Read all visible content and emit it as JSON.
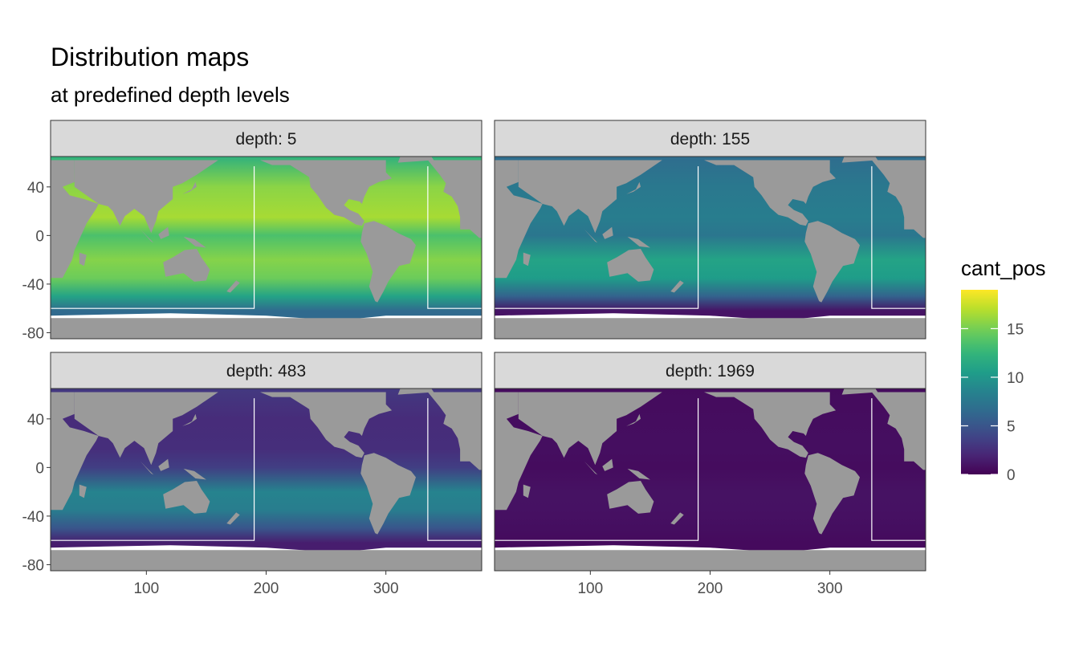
{
  "chart_data": {
    "type": "heatmap",
    "title": "Distribution maps",
    "subtitle": "at predefined depth levels",
    "facet_prefix": "depth: ",
    "x": {
      "lim": [
        20,
        380
      ],
      "ticks": [
        100,
        200,
        300
      ]
    },
    "y": {
      "lim": [
        -85,
        65
      ],
      "ticks": [
        40,
        0,
        -40,
        -80
      ]
    },
    "legend": {
      "title": "cant_pos",
      "position": "right",
      "lim": [
        0,
        19
      ],
      "breaks": [
        0,
        5,
        10,
        15
      ],
      "colormap": "viridis"
    },
    "colors": {
      "land": "#9a9a9a",
      "no_data": "#ffffff",
      "strip_fill": "#d9d9d9",
      "border": "#333333",
      "basin_outline": "#ffffff"
    },
    "basin_outline": {
      "y_min": -60,
      "x_left": 190,
      "x_right": 335
    },
    "panels": [
      {
        "depth": 5,
        "mean": 13.5,
        "surface_peak": 16.5,
        "subtropical_peak": 15.5,
        "southern_low": 6.5
      },
      {
        "depth": 155,
        "mean": 7.5,
        "surface_peak": 8.0,
        "subtropical_peak": 11.0,
        "southern_low": 1.0
      },
      {
        "depth": 483,
        "mean": 3.5,
        "surface_peak": 2.5,
        "subtropical_peak": 8.5,
        "southern_low": 1.5
      },
      {
        "depth": 1969,
        "mean": 0.6,
        "surface_peak": 0.7,
        "subtropical_peak": 0.9,
        "southern_low": 0.5
      }
    ]
  }
}
